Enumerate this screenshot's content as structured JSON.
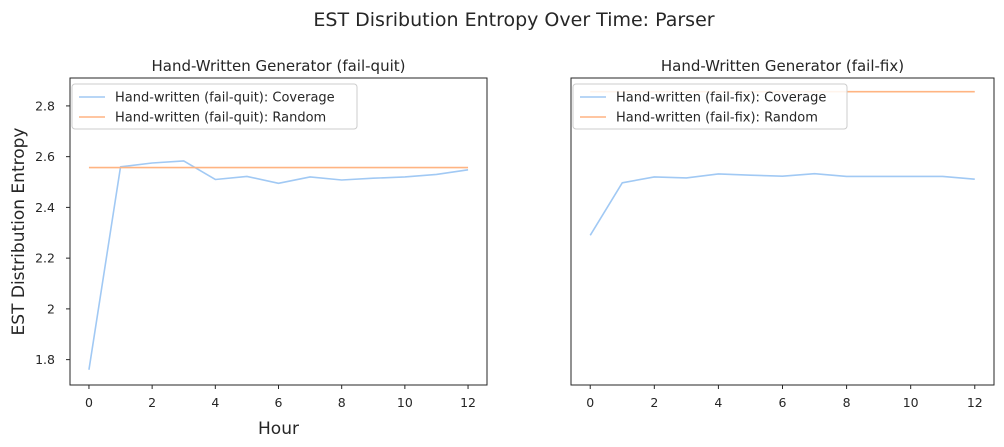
{
  "figure": {
    "title": "EST Disribution Entropy Over Time: Parser"
  },
  "colors": {
    "coverage": "#a1c9f4",
    "random": "#ffb482",
    "axes_edge": "#262626"
  },
  "chart_data": [
    {
      "type": "line",
      "title": "Hand-Written Generator (fail-quit)",
      "xlabel": "Hour",
      "ylabel": "EST Distribution Entropy",
      "xlim": [
        -0.6,
        12.6
      ],
      "ylim": [
        1.7,
        2.91
      ],
      "xticks": [
        0,
        2,
        4,
        6,
        8,
        10,
        12
      ],
      "yticks": [
        1.8,
        2.0,
        2.2,
        2.4,
        2.6,
        2.8
      ],
      "grid": false,
      "legend": "top-left",
      "series": [
        {
          "name": "Hand-written (fail-quit): Coverage",
          "color": "#a1c9f4",
          "x": [
            0,
            1,
            2,
            3,
            4,
            5,
            6,
            7,
            8,
            9,
            10,
            11,
            12
          ],
          "y": [
            1.76,
            2.56,
            2.575,
            2.583,
            2.51,
            2.522,
            2.495,
            2.52,
            2.508,
            2.515,
            2.52,
            2.53,
            2.548
          ]
        },
        {
          "name": "Hand-written (fail-quit): Random",
          "color": "#ffb482",
          "x": [
            0,
            1,
            2,
            3,
            4,
            5,
            6,
            7,
            8,
            9,
            10,
            11,
            12
          ],
          "y": [
            2.557,
            2.557,
            2.557,
            2.557,
            2.557,
            2.557,
            2.557,
            2.557,
            2.557,
            2.557,
            2.557,
            2.557,
            2.557
          ]
        }
      ]
    },
    {
      "type": "line",
      "title": "Hand-Written Generator (fail-fix)",
      "xlabel": "",
      "ylabel": "",
      "xlim": [
        -0.6,
        12.6
      ],
      "ylim": [
        1.7,
        2.91
      ],
      "xticks": [
        0,
        2,
        4,
        6,
        8,
        10,
        12
      ],
      "yticks": [],
      "grid": false,
      "legend": "top-left",
      "series": [
        {
          "name": "Hand-written (fail-fix): Coverage",
          "color": "#a1c9f4",
          "x": [
            0,
            1,
            2,
            3,
            4,
            5,
            6,
            7,
            8,
            9,
            10,
            11,
            12
          ],
          "y": [
            2.29,
            2.497,
            2.52,
            2.516,
            2.532,
            2.527,
            2.523,
            2.533,
            2.522,
            2.522,
            2.522,
            2.522,
            2.511
          ]
        },
        {
          "name": "Hand-written (fail-fix): Random",
          "color": "#ffb482",
          "x": [
            0,
            1,
            2,
            3,
            4,
            5,
            6,
            7,
            8,
            9,
            10,
            11,
            12
          ],
          "y": [
            2.856,
            2.856,
            2.856,
            2.856,
            2.856,
            2.856,
            2.856,
            2.856,
            2.856,
            2.856,
            2.856,
            2.856,
            2.856
          ]
        }
      ]
    }
  ]
}
